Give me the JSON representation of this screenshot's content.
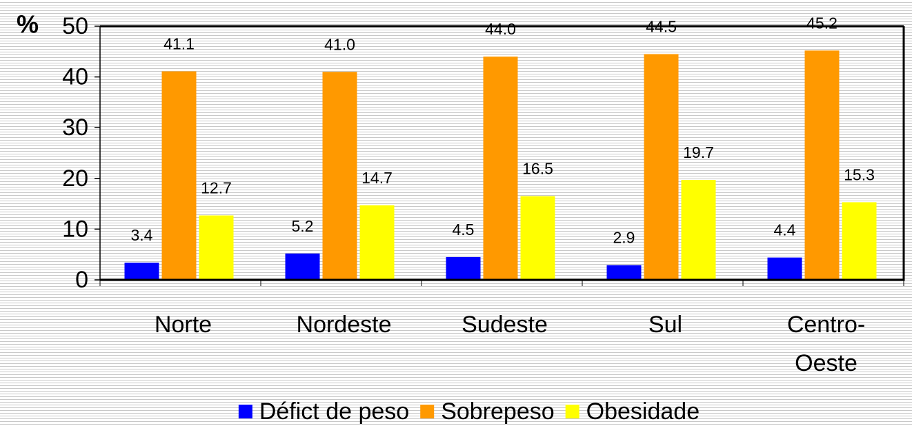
{
  "chart_data": {
    "type": "bar",
    "y_label": "%",
    "categories": [
      "Norte",
      "Nordeste",
      "Sudeste",
      "Sul",
      "Centro-Oeste"
    ],
    "series": [
      {
        "name": "Défict de peso",
        "color": "#0000ff",
        "values": [
          3.4,
          5.2,
          4.5,
          2.9,
          4.4
        ],
        "value_labels": [
          "3.4",
          "5.2",
          "4.5",
          "2.9",
          "4.4"
        ]
      },
      {
        "name": "Sobrepeso",
        "color": "#ff9900",
        "values": [
          41.1,
          41.0,
          44.0,
          44.5,
          45.2
        ],
        "value_labels": [
          "41.1",
          "41.0",
          "44.0",
          "44.5",
          "45.2"
        ]
      },
      {
        "name": "Obesidade",
        "color": "#ffff00",
        "values": [
          12.7,
          14.7,
          16.5,
          19.7,
          15.3
        ],
        "value_labels": [
          "12.7",
          "14.7",
          "16.5",
          "19.7",
          "15.3"
        ]
      }
    ],
    "ylim": [
      0,
      50
    ],
    "yticks": [
      0,
      10,
      20,
      30,
      40,
      50
    ],
    "legend": "bottom"
  }
}
